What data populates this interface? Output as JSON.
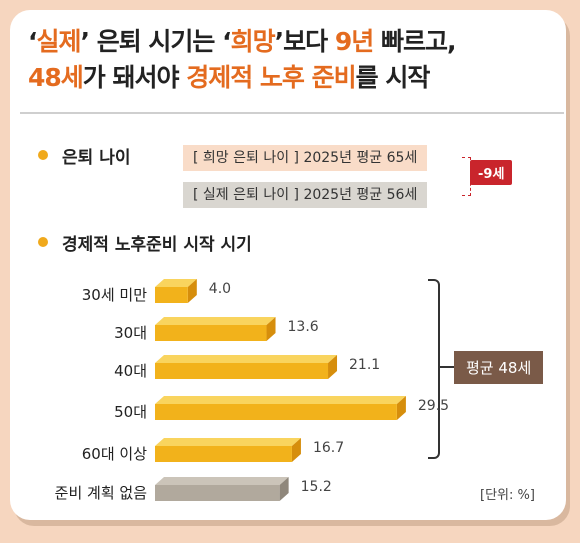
{
  "title": {
    "l1": [
      "‘",
      "실제",
      "’ 은퇴 시기는 ‘",
      "희망",
      "’보다 ",
      "9년",
      " 빠르고,"
    ],
    "l2": [
      "48세",
      "가 돼서야 ",
      "경제적 노후 준비",
      "를 시작"
    ]
  },
  "section1": {
    "title": "은퇴 나이",
    "hope_pill": "[ 희망 은퇴 나이 ] 2025년 평균 65세",
    "real_pill": "[ 실제 은퇴 나이 ] 2025년 평균 56세",
    "diff_badge": "-9세"
  },
  "section2": {
    "title": "경제적 노후준비 시작 시기",
    "average_badge": "평균 48세",
    "unit": "[단위: %]"
  },
  "chart_data": {
    "type": "bar",
    "orientation": "horizontal",
    "categories": [
      "30세 미만",
      "30대",
      "40대",
      "50대",
      "60대 이상",
      "준비 계획 없음"
    ],
    "values": [
      4.0,
      13.6,
      21.1,
      29.5,
      16.7,
      15.2
    ],
    "value_labels": [
      "4.0",
      "13.6",
      "21.1",
      "29.5",
      "16.7",
      "15.2"
    ],
    "unit": "%",
    "colors": {
      "main": "#f2b21b",
      "main_side": "#d68e0c",
      "main_top": "#f9d45e",
      "none": "#b1a99d",
      "none_side": "#8f877b",
      "none_top": "#cbc4b9"
    },
    "bracket_label": "평균 48세"
  },
  "colors": {
    "accent": "#e46b1f",
    "badge_red": "#c9252c",
    "badge_brown": "#7a5a48",
    "background": "#f6d6bf"
  }
}
